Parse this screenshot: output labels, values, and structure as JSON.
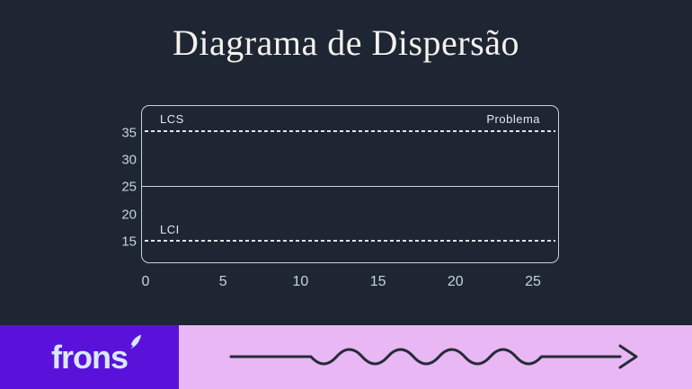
{
  "title": "Diagrama de Dispersão",
  "colors": {
    "background": "#1e2633",
    "chart_border": "#c7d3de",
    "dashed_line": "#dde6ee",
    "title_text": "#f3f1ec",
    "tick_text": "#c6d2de",
    "logo_background": "#5a12da",
    "logo_text": "#d9e9fb",
    "footer_band": "#e9b7f3",
    "arrow": "#252c3a"
  },
  "chart": {
    "lcs_label": "LCS",
    "problema_label": "Problema",
    "lci_label": "LCI",
    "y_ticks": [
      "35",
      "30",
      "25",
      "20",
      "15"
    ],
    "x_ticks": [
      "0",
      "5",
      "10",
      "15",
      "20",
      "25"
    ]
  },
  "chart_data": {
    "type": "scatter",
    "title": "Diagrama de Dispersão",
    "points": [],
    "x_ticks": [
      0,
      5,
      10,
      15,
      20,
      25
    ],
    "y_ticks": [
      35,
      30,
      25,
      20,
      15
    ],
    "xlim": [
      0,
      26.8
    ],
    "ylim": [
      11,
      40
    ],
    "grid": false,
    "reference_lines": [
      {
        "label": "LCS",
        "value": 35,
        "style": "dashed"
      },
      {
        "label": "",
        "value": 25,
        "style": "solid"
      },
      {
        "label": "LCI",
        "value": 15,
        "style": "dashed"
      }
    ],
    "annotations": [
      {
        "text": "LCS",
        "position": "top-left-inside"
      },
      {
        "text": "Problema",
        "position": "top-right-inside"
      },
      {
        "text": "LCI",
        "position": "above-lci-line"
      }
    ],
    "legend": null
  },
  "footer": {
    "logo_text": "frons",
    "logo_icon": "leaf-icon",
    "arrow_icon": "wavy-arrow-right"
  }
}
